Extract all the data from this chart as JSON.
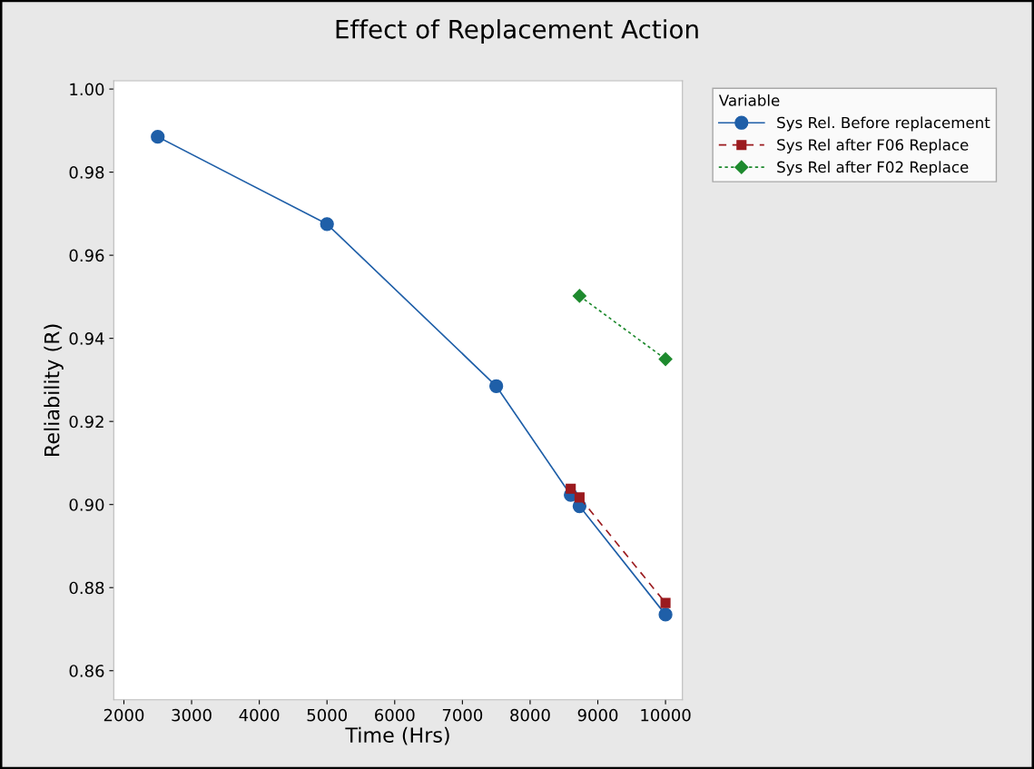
{
  "chart_data": {
    "type": "line",
    "title": "Effect of Replacement Action",
    "xlabel": "Time (Hrs)",
    "ylabel": "Reliability (R)",
    "legend_title": "Variable",
    "series": [
      {
        "name": "Sys Rel. Before replacement",
        "color": "#1f5fa8",
        "marker": "circle",
        "line_style": "solid",
        "x": [
          2500,
          5000,
          7500,
          8600,
          8730,
          10000
        ],
        "values": [
          0.9885,
          0.9675,
          0.9285,
          0.9023,
          0.8996,
          0.8735
        ]
      },
      {
        "name": "Sys Rel after F06 Replace",
        "color": "#9b1b1f",
        "marker": "square",
        "line_style": "dashed",
        "x": [
          8600,
          8730,
          10000
        ],
        "values": [
          0.9038,
          0.9017,
          0.8763
        ]
      },
      {
        "name": "Sys Rel after F02 Replace",
        "color": "#1e8a2e",
        "marker": "diamond",
        "line_style": "dotted",
        "x": [
          8730,
          10000
        ],
        "values": [
          0.9502,
          0.935
        ]
      }
    ],
    "xlim": [
      1850,
      10250
    ],
    "xticks": [
      2000,
      3000,
      4000,
      5000,
      6000,
      7000,
      8000,
      9000,
      10000
    ],
    "ylim": [
      0.853,
      1.002
    ],
    "yticks": [
      {
        "value": 0.86,
        "label": "0.86"
      },
      {
        "value": 0.88,
        "label": "0.88"
      },
      {
        "value": 0.9,
        "label": "0.90"
      },
      {
        "value": 0.92,
        "label": "0.92"
      },
      {
        "value": 0.94,
        "label": "0.94"
      },
      {
        "value": 0.96,
        "label": "0.96"
      },
      {
        "value": 0.98,
        "label": "0.98"
      },
      {
        "value": 1.0,
        "label": "1.00"
      }
    ],
    "grid": false,
    "legend": "top right"
  }
}
